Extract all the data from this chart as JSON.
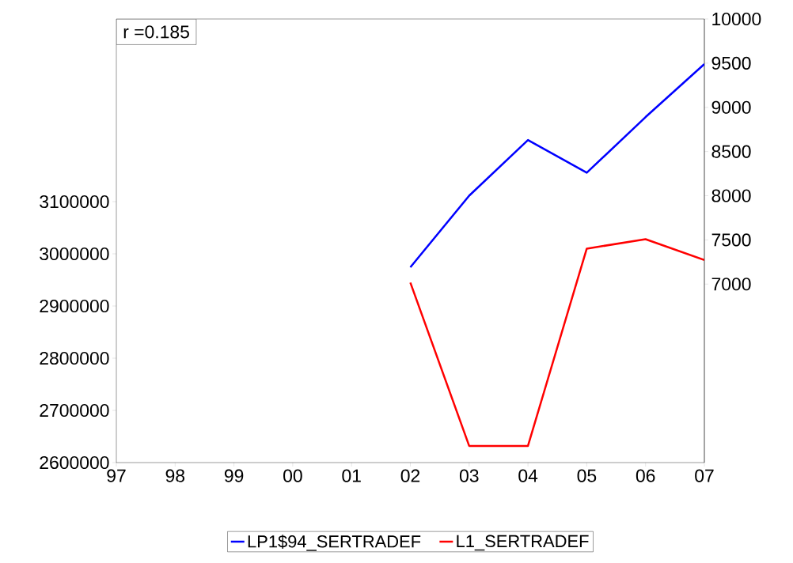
{
  "chart_data": {
    "type": "line",
    "categories": [
      "97",
      "98",
      "99",
      "00",
      "01",
      "02",
      "03",
      "04",
      "05",
      "06",
      "07"
    ],
    "series": [
      {
        "name": "LP1$94_SERTRADEF",
        "color": "#0000ff",
        "axis": "y2",
        "values": [
          null,
          null,
          null,
          null,
          null,
          7190,
          8000,
          8630,
          8260,
          8890,
          9490
        ]
      },
      {
        "name": "L1_SERTRADEF",
        "color": "#ff0000",
        "values": [
          null,
          null,
          null,
          null,
          null,
          2945000,
          2632000,
          2632000,
          3010000,
          3028000,
          2988000
        ]
      }
    ],
    "ylim": [
      2600000,
      3450000
    ],
    "yticks": [
      2600000,
      2700000,
      2800000,
      2900000,
      3000000,
      3100000
    ],
    "y2lim": [
      4980,
      10000
    ],
    "y2ticks": [
      7000,
      7500,
      8000,
      8500,
      9000,
      9500,
      10000
    ],
    "legend": "bottom",
    "annotations": [
      "r =0.185"
    ]
  }
}
